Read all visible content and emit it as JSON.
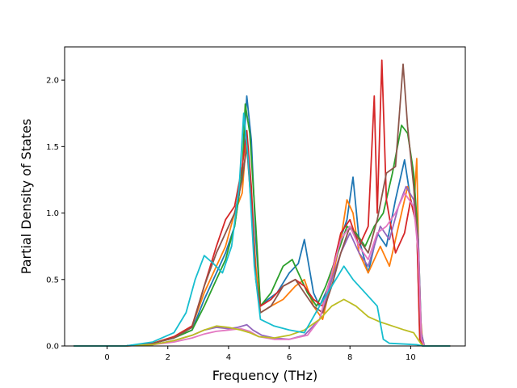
{
  "chart_data": {
    "type": "line",
    "title": "",
    "xlabel": "Frequency (THz)",
    "ylabel": "Partial Density of States",
    "xlim": [
      -1.4,
      11.8
    ],
    "ylim": [
      0.0,
      2.25
    ],
    "xticks": [
      0,
      2,
      4,
      6,
      8,
      10
    ],
    "yticks": [
      0.0,
      0.5,
      1.0,
      1.5,
      2.0
    ],
    "xtick_labels": [
      "0",
      "2",
      "4",
      "6",
      "8",
      "10"
    ],
    "ytick_labels": [
      "0.0",
      "0.5",
      "1.0",
      "1.5",
      "2.0"
    ],
    "grid": false,
    "legend": "none",
    "series": [
      {
        "color": "#1f77b4",
        "points": [
          [
            -1.1,
            0
          ],
          [
            0.6,
            0
          ],
          [
            1.5,
            0.02
          ],
          [
            2.2,
            0.06
          ],
          [
            2.8,
            0.12
          ],
          [
            3.2,
            0.35
          ],
          [
            3.6,
            0.55
          ],
          [
            3.9,
            0.7
          ],
          [
            4.2,
            0.9
          ],
          [
            4.45,
            1.3
          ],
          [
            4.6,
            1.88
          ],
          [
            4.75,
            1.55
          ],
          [
            4.9,
            0.8
          ],
          [
            5.05,
            0.3
          ],
          [
            5.3,
            0.35
          ],
          [
            5.6,
            0.4
          ],
          [
            6.0,
            0.55
          ],
          [
            6.3,
            0.62
          ],
          [
            6.5,
            0.8
          ],
          [
            6.8,
            0.4
          ],
          [
            7.0,
            0.3
          ],
          [
            7.3,
            0.45
          ],
          [
            7.6,
            0.75
          ],
          [
            7.9,
            0.95
          ],
          [
            8.1,
            1.27
          ],
          [
            8.3,
            0.8
          ],
          [
            8.6,
            0.55
          ],
          [
            8.9,
            0.85
          ],
          [
            9.2,
            0.75
          ],
          [
            9.5,
            1.1
          ],
          [
            9.8,
            1.4
          ],
          [
            10.0,
            1.1
          ],
          [
            10.2,
            0.9
          ],
          [
            10.3,
            0.1
          ],
          [
            10.4,
            0
          ],
          [
            11.3,
            0
          ]
        ]
      },
      {
        "color": "#ff7f0e",
        "points": [
          [
            -1.1,
            0
          ],
          [
            0.6,
            0
          ],
          [
            1.5,
            0.02
          ],
          [
            2.2,
            0.07
          ],
          [
            2.8,
            0.15
          ],
          [
            3.2,
            0.4
          ],
          [
            3.6,
            0.6
          ],
          [
            3.9,
            0.75
          ],
          [
            4.2,
            1.0
          ],
          [
            4.45,
            1.15
          ],
          [
            4.6,
            1.6
          ],
          [
            4.75,
            1.1
          ],
          [
            4.9,
            0.6
          ],
          [
            5.05,
            0.25
          ],
          [
            5.4,
            0.3
          ],
          [
            5.8,
            0.35
          ],
          [
            6.2,
            0.45
          ],
          [
            6.5,
            0.5
          ],
          [
            6.8,
            0.3
          ],
          [
            7.1,
            0.2
          ],
          [
            7.4,
            0.5
          ],
          [
            7.7,
            0.8
          ],
          [
            7.9,
            1.1
          ],
          [
            8.1,
            1.0
          ],
          [
            8.3,
            0.7
          ],
          [
            8.6,
            0.55
          ],
          [
            9.0,
            0.75
          ],
          [
            9.3,
            0.6
          ],
          [
            9.6,
            0.9
          ],
          [
            9.9,
            1.2
          ],
          [
            10.1,
            1.0
          ],
          [
            10.2,
            1.41
          ],
          [
            10.3,
            0.3
          ],
          [
            10.4,
            0
          ],
          [
            11.3,
            0
          ]
        ]
      },
      {
        "color": "#2ca02c",
        "points": [
          [
            -1.1,
            0
          ],
          [
            0.6,
            0
          ],
          [
            1.5,
            0.02
          ],
          [
            2.2,
            0.06
          ],
          [
            2.8,
            0.12
          ],
          [
            3.2,
            0.3
          ],
          [
            3.6,
            0.5
          ],
          [
            3.9,
            0.65
          ],
          [
            4.2,
            0.9
          ],
          [
            4.45,
            1.3
          ],
          [
            4.55,
            1.82
          ],
          [
            4.7,
            1.6
          ],
          [
            4.9,
            0.9
          ],
          [
            5.05,
            0.3
          ],
          [
            5.4,
            0.4
          ],
          [
            5.8,
            0.6
          ],
          [
            6.1,
            0.65
          ],
          [
            6.3,
            0.55
          ],
          [
            6.6,
            0.4
          ],
          [
            6.9,
            0.3
          ],
          [
            7.2,
            0.45
          ],
          [
            7.6,
            0.7
          ],
          [
            7.9,
            0.9
          ],
          [
            8.2,
            0.85
          ],
          [
            8.5,
            0.75
          ],
          [
            8.8,
            0.9
          ],
          [
            9.1,
            1.0
          ],
          [
            9.4,
            1.3
          ],
          [
            9.7,
            1.66
          ],
          [
            9.9,
            1.6
          ],
          [
            10.1,
            1.3
          ],
          [
            10.25,
            0.8
          ],
          [
            10.35,
            0.1
          ],
          [
            10.45,
            0
          ],
          [
            11.3,
            0
          ]
        ]
      },
      {
        "color": "#d62728",
        "points": [
          [
            -1.1,
            0
          ],
          [
            0.6,
            0
          ],
          [
            1.5,
            0.02
          ],
          [
            2.2,
            0.07
          ],
          [
            2.8,
            0.15
          ],
          [
            3.2,
            0.45
          ],
          [
            3.6,
            0.75
          ],
          [
            3.9,
            0.95
          ],
          [
            4.2,
            1.05
          ],
          [
            4.45,
            1.35
          ],
          [
            4.6,
            1.62
          ],
          [
            4.75,
            1.2
          ],
          [
            4.9,
            0.5
          ],
          [
            5.05,
            0.3
          ],
          [
            5.4,
            0.35
          ],
          [
            5.8,
            0.45
          ],
          [
            6.2,
            0.5
          ],
          [
            6.5,
            0.45
          ],
          [
            6.8,
            0.35
          ],
          [
            7.1,
            0.3
          ],
          [
            7.4,
            0.55
          ],
          [
            7.7,
            0.85
          ],
          [
            8.0,
            0.95
          ],
          [
            8.3,
            0.75
          ],
          [
            8.6,
            0.9
          ],
          [
            8.8,
            1.88
          ],
          [
            8.9,
            1.0
          ],
          [
            9.05,
            2.15
          ],
          [
            9.2,
            1.1
          ],
          [
            9.5,
            0.7
          ],
          [
            9.8,
            0.85
          ],
          [
            10.0,
            1.1
          ],
          [
            10.2,
            0.9
          ],
          [
            10.3,
            0.05
          ],
          [
            10.4,
            0
          ],
          [
            11.3,
            0
          ]
        ]
      },
      {
        "color": "#9467bd",
        "points": [
          [
            -1.1,
            0
          ],
          [
            0.6,
            0
          ],
          [
            1.5,
            0.01
          ],
          [
            2.2,
            0.04
          ],
          [
            2.8,
            0.08
          ],
          [
            3.2,
            0.12
          ],
          [
            3.6,
            0.14
          ],
          [
            4.0,
            0.13
          ],
          [
            4.3,
            0.14
          ],
          [
            4.6,
            0.16
          ],
          [
            4.8,
            0.12
          ],
          [
            5.1,
            0.08
          ],
          [
            5.5,
            0.06
          ],
          [
            6.0,
            0.05
          ],
          [
            6.5,
            0.08
          ],
          [
            7.0,
            0.2
          ],
          [
            7.4,
            0.5
          ],
          [
            7.7,
            0.7
          ],
          [
            8.0,
            0.85
          ],
          [
            8.3,
            0.7
          ],
          [
            8.6,
            0.6
          ],
          [
            9.0,
            0.9
          ],
          [
            9.3,
            0.8
          ],
          [
            9.6,
            1.05
          ],
          [
            9.85,
            1.2
          ],
          [
            10.1,
            1.1
          ],
          [
            10.25,
            0.8
          ],
          [
            10.35,
            0.1
          ],
          [
            10.45,
            0
          ],
          [
            11.3,
            0
          ]
        ]
      },
      {
        "color": "#8c564b",
        "points": [
          [
            -1.1,
            0
          ],
          [
            0.6,
            0
          ],
          [
            1.5,
            0.02
          ],
          [
            2.2,
            0.06
          ],
          [
            2.8,
            0.14
          ],
          [
            3.2,
            0.45
          ],
          [
            3.6,
            0.7
          ],
          [
            3.9,
            0.85
          ],
          [
            4.2,
            1.0
          ],
          [
            4.45,
            1.25
          ],
          [
            4.6,
            1.5
          ],
          [
            4.75,
            1.05
          ],
          [
            4.9,
            0.5
          ],
          [
            5.05,
            0.25
          ],
          [
            5.4,
            0.3
          ],
          [
            5.8,
            0.45
          ],
          [
            6.2,
            0.5
          ],
          [
            6.5,
            0.4
          ],
          [
            6.8,
            0.3
          ],
          [
            7.1,
            0.25
          ],
          [
            7.4,
            0.45
          ],
          [
            7.7,
            0.7
          ],
          [
            8.0,
            0.9
          ],
          [
            8.3,
            0.8
          ],
          [
            8.6,
            0.7
          ],
          [
            8.9,
            0.95
          ],
          [
            9.2,
            1.3
          ],
          [
            9.5,
            1.35
          ],
          [
            9.75,
            2.12
          ],
          [
            9.9,
            1.65
          ],
          [
            10.1,
            1.2
          ],
          [
            10.25,
            0.7
          ],
          [
            10.35,
            0.05
          ],
          [
            10.45,
            0
          ],
          [
            11.3,
            0
          ]
        ]
      },
      {
        "color": "#e377c2",
        "points": [
          [
            -1.1,
            0
          ],
          [
            0.6,
            0
          ],
          [
            1.5,
            0.01
          ],
          [
            2.2,
            0.03
          ],
          [
            2.8,
            0.06
          ],
          [
            3.2,
            0.09
          ],
          [
            3.6,
            0.11
          ],
          [
            4.0,
            0.12
          ],
          [
            4.4,
            0.13
          ],
          [
            4.7,
            0.11
          ],
          [
            5.0,
            0.07
          ],
          [
            5.5,
            0.05
          ],
          [
            6.0,
            0.05
          ],
          [
            6.6,
            0.08
          ],
          [
            7.0,
            0.2
          ],
          [
            7.4,
            0.55
          ],
          [
            7.7,
            0.8
          ],
          [
            8.0,
            0.9
          ],
          [
            8.3,
            0.75
          ],
          [
            8.6,
            0.65
          ],
          [
            8.9,
            0.85
          ],
          [
            9.2,
            0.9
          ],
          [
            9.5,
            1.0
          ],
          [
            9.8,
            1.15
          ],
          [
            10.1,
            1.05
          ],
          [
            10.25,
            0.7
          ],
          [
            10.35,
            0.05
          ],
          [
            10.45,
            0
          ],
          [
            11.3,
            0
          ]
        ]
      },
      {
        "color": "#bcbd22",
        "points": [
          [
            -1.1,
            0
          ],
          [
            0.6,
            0
          ],
          [
            1.5,
            0.01
          ],
          [
            2.2,
            0.04
          ],
          [
            2.8,
            0.08
          ],
          [
            3.2,
            0.12
          ],
          [
            3.6,
            0.15
          ],
          [
            4.0,
            0.14
          ],
          [
            4.4,
            0.12
          ],
          [
            4.7,
            0.1
          ],
          [
            5.0,
            0.07
          ],
          [
            5.5,
            0.06
          ],
          [
            6.0,
            0.08
          ],
          [
            6.5,
            0.12
          ],
          [
            7.0,
            0.2
          ],
          [
            7.4,
            0.3
          ],
          [
            7.8,
            0.35
          ],
          [
            8.2,
            0.3
          ],
          [
            8.6,
            0.22
          ],
          [
            9.0,
            0.18
          ],
          [
            9.4,
            0.15
          ],
          [
            9.8,
            0.12
          ],
          [
            10.1,
            0.1
          ],
          [
            10.3,
            0.03
          ],
          [
            10.4,
            0
          ],
          [
            11.3,
            0
          ]
        ]
      },
      {
        "color": "#17becf",
        "points": [
          [
            -1.1,
            0
          ],
          [
            0.6,
            0
          ],
          [
            1.5,
            0.03
          ],
          [
            2.2,
            0.1
          ],
          [
            2.6,
            0.25
          ],
          [
            2.9,
            0.5
          ],
          [
            3.2,
            0.68
          ],
          [
            3.5,
            0.62
          ],
          [
            3.8,
            0.55
          ],
          [
            4.1,
            0.75
          ],
          [
            4.35,
            1.2
          ],
          [
            4.5,
            1.75
          ],
          [
            4.65,
            1.4
          ],
          [
            4.85,
            0.6
          ],
          [
            5.05,
            0.2
          ],
          [
            5.5,
            0.15
          ],
          [
            6.0,
            0.12
          ],
          [
            6.5,
            0.1
          ],
          [
            7.0,
            0.3
          ],
          [
            7.4,
            0.45
          ],
          [
            7.8,
            0.6
          ],
          [
            8.1,
            0.5
          ],
          [
            8.5,
            0.4
          ],
          [
            8.9,
            0.3
          ],
          [
            9.1,
            0.05
          ],
          [
            9.3,
            0.02
          ],
          [
            10.2,
            0.01
          ],
          [
            10.4,
            0
          ],
          [
            11.3,
            0
          ]
        ]
      }
    ]
  }
}
